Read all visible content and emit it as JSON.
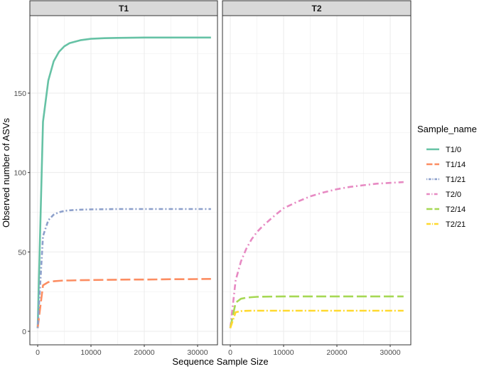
{
  "chart_data": {
    "type": "line",
    "xlabel": "Sequence Sample Size",
    "ylabel": "Observed number of ASVs",
    "xlim": [
      -1600,
      34000
    ],
    "ylim": [
      -8,
      195
    ],
    "xticks": [
      0,
      10000,
      20000,
      30000
    ],
    "yticks": [
      0,
      50,
      100,
      150
    ],
    "grid": true,
    "legend_title": "Sample_name",
    "legend_position": "right",
    "x": [
      1,
      1000,
      2000,
      3000,
      4000,
      5000,
      6000,
      8000,
      10000,
      12500,
      15000,
      17500,
      20000,
      22500,
      25000,
      27500,
      30000,
      32500
    ],
    "panels": [
      {
        "title": "T1",
        "series": [
          {
            "name": "T1/0",
            "color": "#66C2A5",
            "dash": "",
            "values": [
              2,
              132,
              158,
              170,
              176,
              179.5,
              181.5,
              183.3,
              184.2,
              184.6,
              184.8,
              184.9,
              185,
              185,
              185,
              185,
              185,
              185
            ]
          },
          {
            "name": "T1/14",
            "color": "#FC8D62",
            "dash": "14,5",
            "values": [
              2,
              29,
              31,
              31.5,
              31.8,
              32,
              32,
              32.2,
              32.3,
              32.4,
              32.5,
              32.6,
              32.6,
              32.7,
              32.8,
              32.8,
              32.9,
              33
            ]
          },
          {
            "name": "T1/21",
            "color": "#8DA0CB",
            "dash": "2,3,6,3",
            "values": [
              2,
              60,
              70,
              73.5,
              75,
              75.8,
              76.2,
              76.6,
              76.8,
              76.9,
              77,
              77,
              77,
              77,
              77,
              77,
              77,
              77
            ]
          }
        ]
      },
      {
        "title": "T2",
        "series": [
          {
            "name": "T2/0",
            "color": "#E78AC3",
            "dash": "8,4,2,4",
            "values": [
              2,
              32,
              44,
              52,
              58,
              62.5,
              66,
              72,
              77.5,
              81.5,
              85,
              87.5,
              89.5,
              91,
              92,
              93,
              93.5,
              94
            ]
          },
          {
            "name": "T2/14",
            "color": "#A6D854",
            "dash": "14,5",
            "values": [
              2,
              18,
              20.5,
              21.2,
              21.5,
              21.7,
              21.8,
              21.9,
              22,
              22,
              22,
              22,
              22,
              22,
              22,
              22,
              22,
              22
            ]
          },
          {
            "name": "T2/21",
            "color": "#FFD92F",
            "dash": "10,3,2,3",
            "values": [
              2,
              12,
              12.7,
              12.9,
              13,
              13,
              13,
              13,
              13,
              13,
              13,
              13,
              13,
              13,
              13,
              13,
              13,
              13
            ]
          }
        ]
      }
    ]
  }
}
